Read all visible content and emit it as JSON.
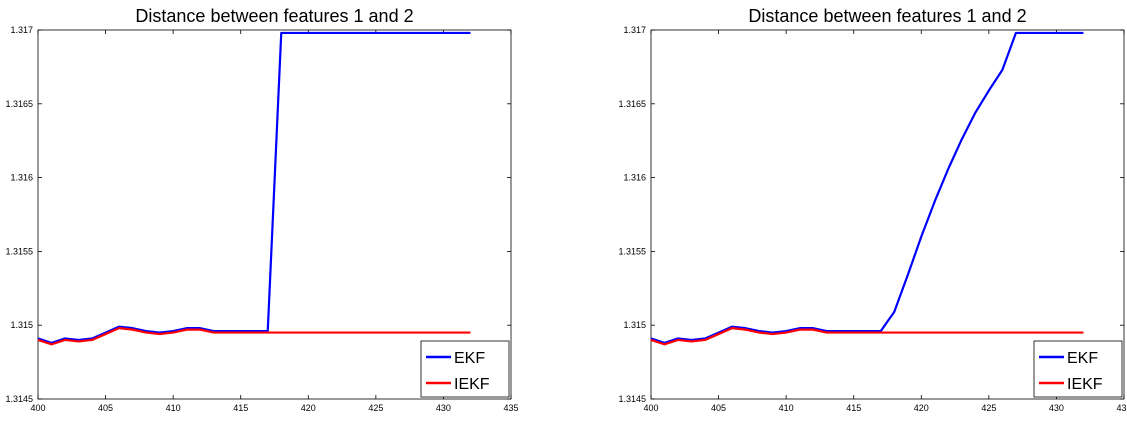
{
  "chart_data": [
    {
      "type": "line",
      "title": "Distance between features 1 and 2",
      "xlabel": "",
      "ylabel": "",
      "xlim": [
        400,
        435
      ],
      "ylim": [
        1.3145,
        1.317
      ],
      "xticks": [
        "400",
        "405",
        "410",
        "415",
        "420",
        "425",
        "430",
        "435"
      ],
      "yticks": [
        "1.3145",
        "1.315",
        "1.3155",
        "1.316",
        "1.3165",
        "1.317"
      ],
      "grid": false,
      "legend": "bottom-right",
      "series": [
        {
          "name": "EKF",
          "color": "#0000ff",
          "x": [
            400,
            401,
            402,
            403,
            404,
            405,
            406,
            407,
            408,
            409,
            410,
            411,
            412,
            413,
            414,
            415,
            416,
            417,
            418,
            419,
            420,
            421,
            422,
            423,
            424,
            425,
            426,
            427,
            428,
            429,
            430,
            431,
            432
          ],
          "y": [
            1.31491,
            1.31488,
            1.31491,
            1.3149,
            1.31491,
            1.31495,
            1.31499,
            1.31498,
            1.31496,
            1.31495,
            1.31496,
            1.31498,
            1.31498,
            1.31496,
            1.31496,
            1.31496,
            1.31496,
            1.31496,
            1.31698,
            1.31698,
            1.31698,
            1.31698,
            1.31698,
            1.31698,
            1.31698,
            1.31698,
            1.31698,
            1.31698,
            1.31698,
            1.31698,
            1.31698,
            1.31698,
            1.31698
          ]
        },
        {
          "name": "IEKF",
          "color": "#ff0000",
          "x": [
            400,
            401,
            402,
            403,
            404,
            405,
            406,
            407,
            408,
            409,
            410,
            411,
            412,
            413,
            414,
            415,
            416,
            417,
            418,
            419,
            420,
            421,
            422,
            423,
            424,
            425,
            426,
            427,
            428,
            429,
            430,
            431,
            432
          ],
          "y": [
            1.3149,
            1.31487,
            1.3149,
            1.31489,
            1.3149,
            1.31494,
            1.31498,
            1.31497,
            1.31495,
            1.31494,
            1.31495,
            1.31497,
            1.31497,
            1.31495,
            1.31495,
            1.31495,
            1.31495,
            1.31495,
            1.31495,
            1.31495,
            1.31495,
            1.31495,
            1.31495,
            1.31495,
            1.31495,
            1.31495,
            1.31495,
            1.31495,
            1.31495,
            1.31495,
            1.31495,
            1.31495,
            1.31495
          ]
        }
      ]
    },
    {
      "type": "line",
      "title": "Distance between features 1 and 2",
      "xlabel": "",
      "ylabel": "",
      "xlim": [
        400,
        435
      ],
      "ylim": [
        1.3145,
        1.317
      ],
      "xticks": [
        "400",
        "405",
        "410",
        "415",
        "420",
        "425",
        "430",
        "435"
      ],
      "yticks": [
        "1.3145",
        "1.315",
        "1.3155",
        "1.316",
        "1.3165",
        "1.317"
      ],
      "grid": false,
      "legend": "bottom-right",
      "series": [
        {
          "name": "EKF",
          "color": "#0000ff",
          "x": [
            400,
            401,
            402,
            403,
            404,
            405,
            406,
            407,
            408,
            409,
            410,
            411,
            412,
            413,
            414,
            415,
            416,
            417,
            418,
            419,
            420,
            421,
            422,
            423,
            424,
            425,
            426,
            427,
            428,
            429,
            430,
            431,
            432
          ],
          "y": [
            1.31491,
            1.31488,
            1.31491,
            1.3149,
            1.31491,
            1.31495,
            1.31499,
            1.31498,
            1.31496,
            1.31495,
            1.31496,
            1.31498,
            1.31498,
            1.31496,
            1.31496,
            1.31496,
            1.31496,
            1.31496,
            1.31509,
            1.31534,
            1.3156,
            1.31584,
            1.31606,
            1.31626,
            1.31644,
            1.31659,
            1.31673,
            1.31698,
            1.31698,
            1.31698,
            1.31698,
            1.31698,
            1.31698
          ]
        },
        {
          "name": "IEKF",
          "color": "#ff0000",
          "x": [
            400,
            401,
            402,
            403,
            404,
            405,
            406,
            407,
            408,
            409,
            410,
            411,
            412,
            413,
            414,
            415,
            416,
            417,
            418,
            419,
            420,
            421,
            422,
            423,
            424,
            425,
            426,
            427,
            428,
            429,
            430,
            431,
            432
          ],
          "y": [
            1.3149,
            1.31487,
            1.3149,
            1.31489,
            1.3149,
            1.31494,
            1.31498,
            1.31497,
            1.31495,
            1.31494,
            1.31495,
            1.31497,
            1.31497,
            1.31495,
            1.31495,
            1.31495,
            1.31495,
            1.31495,
            1.31495,
            1.31495,
            1.31495,
            1.31495,
            1.31495,
            1.31495,
            1.31495,
            1.31495,
            1.31495,
            1.31495,
            1.31495,
            1.31495,
            1.31495,
            1.31495,
            1.31495
          ]
        }
      ]
    }
  ]
}
